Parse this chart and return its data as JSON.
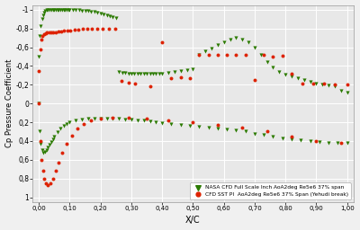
{
  "xlabel": "X/C",
  "ylabel": "Cp Pressure Coefficient",
  "xlim": [
    -0.02,
    1.02
  ],
  "ylim": [
    1.05,
    -1.05
  ],
  "xticks": [
    0.0,
    0.1,
    0.2,
    0.3,
    0.4,
    0.5,
    0.6,
    0.7,
    0.8,
    0.9,
    1.0
  ],
  "xtick_labels": [
    "0,00",
    "0,10",
    "0,20",
    "0,30",
    "0,40",
    "0,50",
    "0,60",
    "0,70",
    "0,80",
    "0,90",
    "1,00"
  ],
  "yticks": [
    -1.0,
    -0.8,
    -0.6,
    -0.4,
    -0.2,
    0.0,
    0.2,
    0.4,
    0.6,
    0.8,
    1.0
  ],
  "ytick_labels": [
    "-1",
    "-0,8",
    "-0,6",
    "-0,4",
    "-0,2",
    "0",
    "0,2",
    "0,4",
    "0,6",
    "0,8",
    "1"
  ],
  "green_label": "NASA CFD Full Scale Inch AoA2deg Re5e6 37% span",
  "red_label": "CFD SST PI  AoA2deg Re5e6 37% Span (Yehudi break)",
  "green_color": "#2a7a00",
  "red_color": "#dd2200",
  "bg_color": "#e8e8e8",
  "fig_color": "#f0f0f0",
  "green_upper_x": [
    0.0,
    0.003,
    0.006,
    0.01,
    0.013,
    0.017,
    0.02,
    0.025,
    0.03,
    0.035,
    0.04,
    0.045,
    0.05,
    0.055,
    0.06,
    0.065,
    0.07,
    0.075,
    0.08,
    0.085,
    0.09,
    0.095,
    0.1,
    0.11,
    0.12,
    0.13,
    0.14,
    0.15,
    0.16,
    0.17,
    0.18,
    0.19,
    0.2,
    0.21,
    0.22,
    0.23,
    0.24,
    0.25,
    0.26,
    0.27,
    0.28,
    0.29,
    0.3,
    0.31,
    0.32,
    0.33,
    0.34,
    0.35,
    0.36,
    0.37,
    0.38,
    0.39,
    0.4,
    0.42,
    0.44,
    0.46,
    0.48,
    0.5,
    0.52,
    0.54,
    0.56,
    0.58,
    0.6,
    0.62,
    0.64,
    0.66,
    0.68,
    0.7,
    0.72,
    0.74,
    0.76,
    0.78,
    0.8,
    0.82,
    0.84,
    0.86,
    0.88,
    0.9,
    0.92,
    0.94,
    0.96,
    0.98,
    1.0
  ],
  "green_upper_y": [
    -0.5,
    -0.72,
    -0.83,
    -0.9,
    -0.94,
    -0.97,
    -0.99,
    -1.0,
    -1.0,
    -1.0,
    -1.0,
    -1.0,
    -1.0,
    -1.0,
    -1.0,
    -1.0,
    -1.0,
    -1.0,
    -1.0,
    -1.0,
    -1.0,
    -1.0,
    -1.0,
    -1.0,
    -1.0,
    -1.0,
    -0.99,
    -0.99,
    -0.99,
    -0.98,
    -0.98,
    -0.97,
    -0.96,
    -0.95,
    -0.94,
    -0.93,
    -0.92,
    -0.91,
    -0.34,
    -0.33,
    -0.33,
    -0.32,
    -0.32,
    -0.32,
    -0.32,
    -0.32,
    -0.32,
    -0.32,
    -0.32,
    -0.32,
    -0.32,
    -0.32,
    -0.32,
    -0.33,
    -0.34,
    -0.35,
    -0.36,
    -0.37,
    -0.52,
    -0.56,
    -0.59,
    -0.62,
    -0.65,
    -0.68,
    -0.7,
    -0.68,
    -0.65,
    -0.6,
    -0.52,
    -0.44,
    -0.38,
    -0.34,
    -0.31,
    -0.29,
    -0.27,
    -0.25,
    -0.23,
    -0.21,
    -0.2,
    -0.19,
    -0.18,
    -0.14,
    -0.12
  ],
  "green_lower_x": [
    0.0,
    0.003,
    0.006,
    0.01,
    0.015,
    0.02,
    0.025,
    0.03,
    0.035,
    0.04,
    0.045,
    0.05,
    0.06,
    0.07,
    0.08,
    0.09,
    0.1,
    0.12,
    0.14,
    0.16,
    0.18,
    0.2,
    0.22,
    0.24,
    0.26,
    0.28,
    0.3,
    0.32,
    0.34,
    0.36,
    0.38,
    0.4,
    0.43,
    0.46,
    0.49,
    0.52,
    0.55,
    0.58,
    0.61,
    0.64,
    0.67,
    0.7,
    0.73,
    0.76,
    0.79,
    0.82,
    0.85,
    0.88,
    0.91,
    0.94,
    0.97,
    1.0
  ],
  "green_lower_y": [
    0.0,
    0.3,
    0.43,
    0.5,
    0.53,
    0.52,
    0.5,
    0.47,
    0.44,
    0.41,
    0.38,
    0.35,
    0.31,
    0.27,
    0.24,
    0.22,
    0.2,
    0.18,
    0.17,
    0.16,
    0.16,
    0.16,
    0.16,
    0.16,
    0.16,
    0.17,
    0.17,
    0.18,
    0.18,
    0.19,
    0.2,
    0.21,
    0.22,
    0.23,
    0.24,
    0.25,
    0.26,
    0.27,
    0.28,
    0.29,
    0.3,
    0.32,
    0.33,
    0.35,
    0.37,
    0.38,
    0.39,
    0.4,
    0.41,
    0.42,
    0.42,
    0.42
  ],
  "red_upper_x": [
    0.0,
    0.004,
    0.008,
    0.012,
    0.017,
    0.022,
    0.027,
    0.033,
    0.04,
    0.047,
    0.055,
    0.063,
    0.072,
    0.082,
    0.092,
    0.103,
    0.115,
    0.128,
    0.142,
    0.157,
    0.173,
    0.19,
    0.208,
    0.227,
    0.247,
    0.268,
    0.29,
    0.313,
    0.36,
    0.4,
    0.43,
    0.46,
    0.49,
    0.52,
    0.55,
    0.58,
    0.61,
    0.64,
    0.67,
    0.7,
    0.73,
    0.76,
    0.79,
    0.82,
    0.855,
    0.89,
    0.925,
    0.96,
    1.0
  ],
  "red_upper_y": [
    -0.35,
    -0.58,
    -0.68,
    -0.72,
    -0.74,
    -0.75,
    -0.76,
    -0.76,
    -0.76,
    -0.76,
    -0.76,
    -0.77,
    -0.77,
    -0.78,
    -0.78,
    -0.78,
    -0.79,
    -0.79,
    -0.8,
    -0.8,
    -0.8,
    -0.8,
    -0.8,
    -0.8,
    -0.8,
    -0.24,
    -0.22,
    -0.21,
    -0.18,
    -0.65,
    -0.27,
    -0.28,
    -0.27,
    -0.52,
    -0.52,
    -0.52,
    -0.52,
    -0.52,
    -0.52,
    -0.25,
    -0.52,
    -0.5,
    -0.51,
    -0.32,
    -0.21,
    -0.21,
    -0.21,
    -0.2,
    -0.2
  ],
  "red_lower_x": [
    0.0,
    0.004,
    0.008,
    0.013,
    0.018,
    0.024,
    0.03,
    0.037,
    0.045,
    0.054,
    0.064,
    0.076,
    0.09,
    0.106,
    0.124,
    0.145,
    0.17,
    0.2,
    0.24,
    0.29,
    0.35,
    0.42,
    0.5,
    0.58,
    0.66,
    0.74,
    0.82,
    0.9,
    0.98
  ],
  "red_lower_y": [
    0.0,
    0.4,
    0.6,
    0.72,
    0.8,
    0.85,
    0.87,
    0.85,
    0.8,
    0.72,
    0.63,
    0.53,
    0.43,
    0.34,
    0.27,
    0.22,
    0.18,
    0.16,
    0.15,
    0.15,
    0.16,
    0.18,
    0.2,
    0.23,
    0.26,
    0.3,
    0.35,
    0.4,
    0.42
  ]
}
